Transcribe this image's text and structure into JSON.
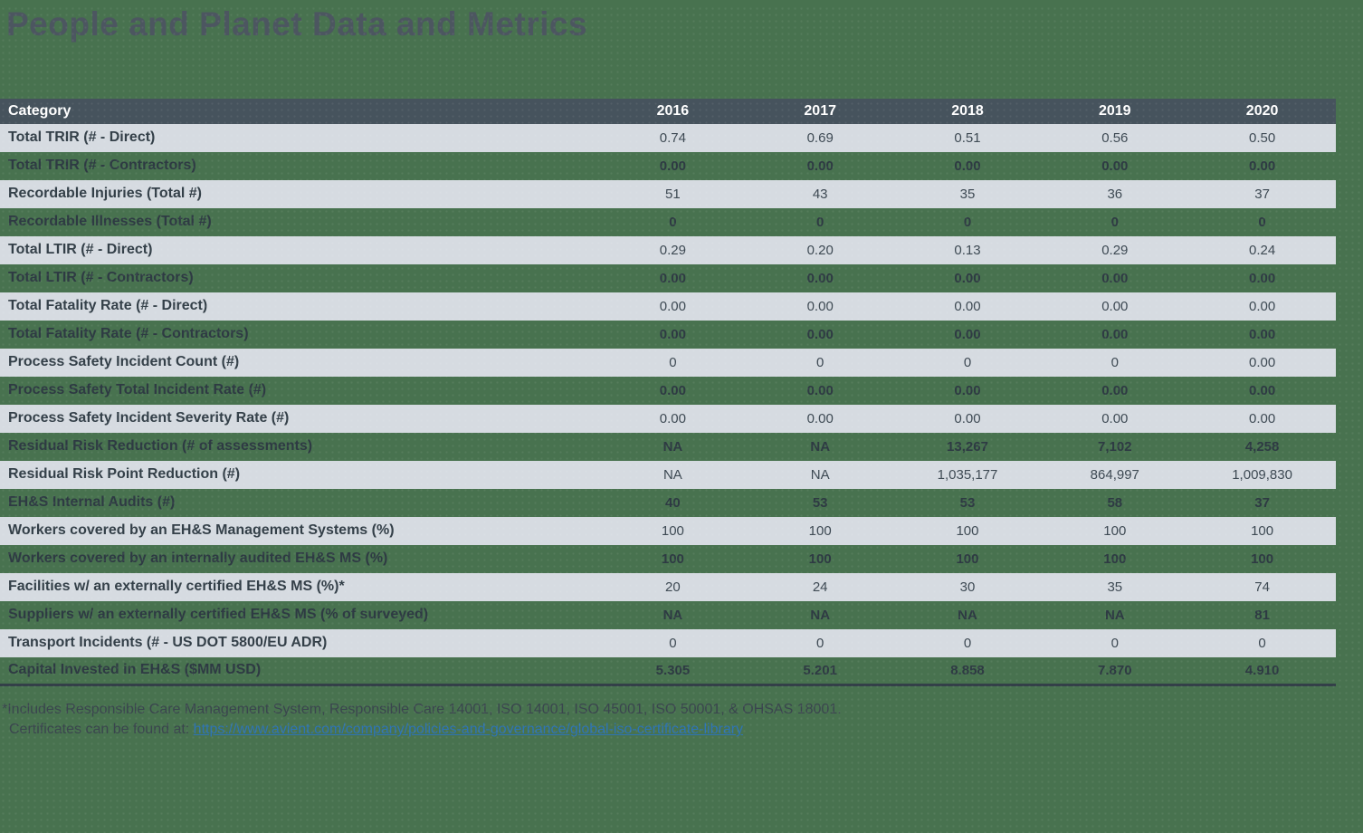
{
  "page": {
    "title": "People and Planet Data and Metrics"
  },
  "table": {
    "columns": [
      "Category",
      "2016",
      "2017",
      "2018",
      "2019",
      "2020"
    ],
    "rows": [
      {
        "category": "Total TRIR (# - Direct)",
        "values": [
          "0.74",
          "0.69",
          "0.51",
          "0.56",
          "0.50"
        ],
        "variant": "light"
      },
      {
        "category": "Total TRIR (# - Contractors)",
        "values": [
          "0.00",
          "0.00",
          "0.00",
          "0.00",
          "0.00"
        ],
        "variant": "green"
      },
      {
        "category": "Recordable Injuries (Total #)",
        "values": [
          "51",
          "43",
          "35",
          "36",
          "37"
        ],
        "variant": "light"
      },
      {
        "category": "Recordable Illnesses (Total #)",
        "values": [
          "0",
          "0",
          "0",
          "0",
          "0"
        ],
        "variant": "green"
      },
      {
        "category": "Total LTIR (# - Direct)",
        "values": [
          "0.29",
          "0.20",
          "0.13",
          "0.29",
          "0.24"
        ],
        "variant": "light"
      },
      {
        "category": "Total LTIR (# - Contractors)",
        "values": [
          "0.00",
          "0.00",
          "0.00",
          "0.00",
          "0.00"
        ],
        "variant": "green"
      },
      {
        "category": "Total Fatality Rate (# - Direct)",
        "values": [
          "0.00",
          "0.00",
          "0.00",
          "0.00",
          "0.00"
        ],
        "variant": "light"
      },
      {
        "category": "Total Fatality Rate (# - Contractors)",
        "values": [
          "0.00",
          "0.00",
          "0.00",
          "0.00",
          "0.00"
        ],
        "variant": "green"
      },
      {
        "category": "Process Safety Incident Count (#)",
        "values": [
          "0",
          "0",
          "0",
          "0",
          "0.00"
        ],
        "variant": "light"
      },
      {
        "category": "Process Safety Total Incident Rate (#)",
        "values": [
          "0.00",
          "0.00",
          "0.00",
          "0.00",
          "0.00"
        ],
        "variant": "green"
      },
      {
        "category": "Process Safety Incident Severity Rate (#)",
        "values": [
          "0.00",
          "0.00",
          "0.00",
          "0.00",
          "0.00"
        ],
        "variant": "light"
      },
      {
        "category": "Residual Risk Reduction (# of assessments)",
        "values": [
          "NA",
          "NA",
          "13,267",
          "7,102",
          "4,258"
        ],
        "variant": "green"
      },
      {
        "category": "Residual Risk Point Reduction (#)",
        "values": [
          "NA",
          "NA",
          "1,035,177",
          "864,997",
          "1,009,830"
        ],
        "variant": "light"
      },
      {
        "category": "EH&S Internal Audits (#)",
        "values": [
          "40",
          "53",
          "53",
          "58",
          "37"
        ],
        "variant": "green"
      },
      {
        "category": "Workers covered by an EH&S Management Systems (%)",
        "values": [
          "100",
          "100",
          "100",
          "100",
          "100"
        ],
        "variant": "light"
      },
      {
        "category": "Workers covered by an internally audited EH&S MS (%)",
        "values": [
          "100",
          "100",
          "100",
          "100",
          "100"
        ],
        "variant": "green"
      },
      {
        "category": "Facilities w/ an externally certified EH&S MS (%)*",
        "values": [
          "20",
          "24",
          "30",
          "35",
          "74"
        ],
        "variant": "light"
      },
      {
        "category": "Suppliers w/ an externally certified EH&S MS (% of surveyed)",
        "values": [
          "NA",
          "NA",
          "NA",
          "NA",
          "81"
        ],
        "variant": "green"
      },
      {
        "category": "Transport Incidents (# - US DOT 5800/EU ADR)",
        "values": [
          "0",
          "0",
          "0",
          "0",
          "0"
        ],
        "variant": "light"
      },
      {
        "category": "Capital Invested in EH&S ($MM USD)",
        "values": [
          "5.305",
          "5.201",
          "8.858",
          "7.870",
          "4.910"
        ],
        "variant": "green"
      }
    ]
  },
  "footnote": {
    "line1": "*Includes Responsible Care Management System, Responsible Care 14001, ISO 14001, ISO 45001, ISO 50001, & OHSAS 18001.",
    "line2_prefix": "Certificates can be found at: ",
    "link_text": "https://www.avient.com/company/policies-and-governance/global-iso-certificate-library"
  },
  "colors": {
    "background": "#48724F",
    "header_bg": "#46535D",
    "light_row_bg": "#D6DBE1",
    "dark_text": "#333F48",
    "title_text": "#4C5660",
    "link_blue": "#2E74B5"
  }
}
